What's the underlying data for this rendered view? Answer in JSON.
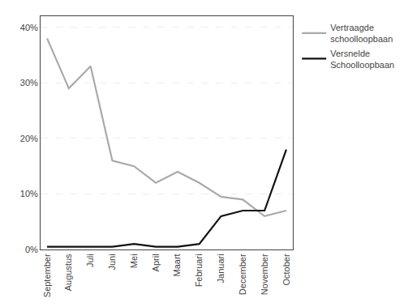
{
  "chart_data": {
    "type": "line",
    "categories": [
      "September",
      "Augustus",
      "Juli",
      "Juni",
      "Mei",
      "April",
      "Maart",
      "Februari",
      "Januari",
      "December",
      "November",
      "October"
    ],
    "series": [
      {
        "name": "Vertraagde\nschoolloopbaan",
        "color": "#aaaaaa",
        "values": [
          38,
          29,
          33,
          16,
          15,
          12,
          14,
          12,
          9.5,
          9,
          6,
          7
        ]
      },
      {
        "name": "Versnelde\nSchoolloopbaan",
        "color": "#111111",
        "values": [
          0.5,
          0.5,
          0.5,
          0.5,
          1,
          0.5,
          0.5,
          1,
          6,
          7,
          7,
          18
        ]
      }
    ],
    "ylim": [
      0,
      42
    ],
    "yticks": [
      {
        "value": 0,
        "label": "0%"
      },
      {
        "value": 10,
        "label": "10%"
      },
      {
        "value": 20,
        "label": "20%"
      },
      {
        "value": 30,
        "label": "30%"
      },
      {
        "value": 40,
        "label": "40%"
      }
    ],
    "grid": true,
    "legend": "right"
  }
}
